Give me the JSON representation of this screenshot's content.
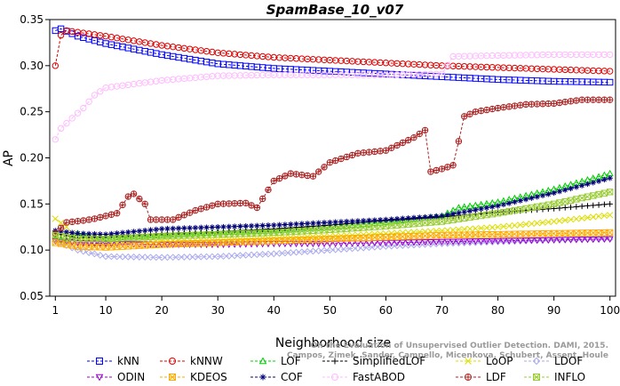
{
  "chart_data": {
    "type": "line",
    "title": "SpamBase_10_v07",
    "xlabel": "Neighborhood size",
    "ylabel": "AP",
    "xlim": [
      0,
      101
    ],
    "ylim": [
      0.05,
      0.35
    ],
    "xticks": [
      1,
      10,
      20,
      30,
      40,
      50,
      60,
      70,
      80,
      90,
      100
    ],
    "yticks": [
      0.05,
      0.1,
      0.15,
      0.2,
      0.25,
      0.3,
      0.35
    ],
    "grid": false,
    "legend_position": "bottom",
    "credit": "Campos, Zimek, Sander, Campello, Micenkova, Schubert, Assent, Houle",
    "credit_top": "On the Evaluation of Unsupervised Outlier Detection. DAMI, 2015.",
    "series": [
      {
        "name": "kNN",
        "color": "#0000ff",
        "marker": "square",
        "anchors": [
          [
            1,
            0.338
          ],
          [
            2,
            0.34
          ],
          [
            5,
            0.332
          ],
          [
            10,
            0.324
          ],
          [
            20,
            0.312
          ],
          [
            30,
            0.302
          ],
          [
            40,
            0.297
          ],
          [
            50,
            0.294
          ],
          [
            60,
            0.291
          ],
          [
            70,
            0.288
          ],
          [
            80,
            0.285
          ],
          [
            90,
            0.283
          ],
          [
            100,
            0.282
          ]
        ]
      },
      {
        "name": "kNNW",
        "color": "#dd0000",
        "marker": "circle",
        "anchors": [
          [
            1,
            0.3
          ],
          [
            2,
            0.333
          ],
          [
            3,
            0.338
          ],
          [
            10,
            0.332
          ],
          [
            20,
            0.322
          ],
          [
            30,
            0.314
          ],
          [
            40,
            0.309
          ],
          [
            50,
            0.306
          ],
          [
            60,
            0.303
          ],
          [
            70,
            0.3
          ],
          [
            80,
            0.298
          ],
          [
            90,
            0.296
          ],
          [
            100,
            0.294
          ]
        ]
      },
      {
        "name": "LOF",
        "color": "#00cc00",
        "marker": "triangle-up",
        "anchors": [
          [
            1,
            0.112
          ],
          [
            3,
            0.11
          ],
          [
            5,
            0.118
          ],
          [
            10,
            0.113
          ],
          [
            20,
            0.116
          ],
          [
            30,
            0.119
          ],
          [
            40,
            0.121
          ],
          [
            50,
            0.125
          ],
          [
            60,
            0.13
          ],
          [
            70,
            0.137
          ],
          [
            73,
            0.146
          ],
          [
            80,
            0.152
          ],
          [
            90,
            0.166
          ],
          [
            100,
            0.183
          ]
        ]
      },
      {
        "name": "SimplifiedLOF",
        "color": "#000000",
        "marker": "plus",
        "anchors": [
          [
            1,
            0.118
          ],
          [
            5,
            0.113
          ],
          [
            10,
            0.115
          ],
          [
            20,
            0.118
          ],
          [
            30,
            0.12
          ],
          [
            40,
            0.123
          ],
          [
            50,
            0.127
          ],
          [
            60,
            0.132
          ],
          [
            70,
            0.136
          ],
          [
            80,
            0.141
          ],
          [
            90,
            0.145
          ],
          [
            100,
            0.15
          ]
        ]
      },
      {
        "name": "LoOP",
        "color": "#dddd00",
        "marker": "x",
        "anchors": [
          [
            1,
            0.134
          ],
          [
            3,
            0.125
          ],
          [
            5,
            0.112
          ],
          [
            10,
            0.108
          ],
          [
            20,
            0.11
          ],
          [
            30,
            0.111
          ],
          [
            40,
            0.113
          ],
          [
            50,
            0.115
          ],
          [
            60,
            0.118
          ],
          [
            70,
            0.121
          ],
          [
            80,
            0.125
          ],
          [
            90,
            0.131
          ],
          [
            100,
            0.138
          ]
        ]
      },
      {
        "name": "LDOF",
        "color": "#aaaaee",
        "marker": "diamond",
        "anchors": [
          [
            1,
            0.11
          ],
          [
            5,
            0.1
          ],
          [
            10,
            0.093
          ],
          [
            20,
            0.092
          ],
          [
            30,
            0.093
          ],
          [
            40,
            0.096
          ],
          [
            50,
            0.1
          ],
          [
            60,
            0.104
          ],
          [
            70,
            0.107
          ],
          [
            80,
            0.109
          ],
          [
            90,
            0.111
          ],
          [
            100,
            0.112
          ]
        ]
      },
      {
        "name": "ODIN",
        "color": "#9900cc",
        "marker": "triangle-down",
        "anchors": [
          [
            1,
            0.11
          ],
          [
            5,
            0.108
          ],
          [
            10,
            0.107
          ],
          [
            20,
            0.106
          ],
          [
            30,
            0.106
          ],
          [
            40,
            0.107
          ],
          [
            50,
            0.107
          ],
          [
            60,
            0.108
          ],
          [
            70,
            0.109
          ],
          [
            80,
            0.11
          ],
          [
            90,
            0.111
          ],
          [
            100,
            0.112
          ]
        ]
      },
      {
        "name": "KDEOS",
        "color": "#ffaa00",
        "marker": "square-x",
        "anchors": [
          [
            1,
            0.108
          ],
          [
            5,
            0.104
          ],
          [
            10,
            0.103
          ],
          [
            20,
            0.106
          ],
          [
            30,
            0.108
          ],
          [
            40,
            0.11
          ],
          [
            50,
            0.112
          ],
          [
            60,
            0.114
          ],
          [
            70,
            0.116
          ],
          [
            80,
            0.117
          ],
          [
            90,
            0.118
          ],
          [
            100,
            0.119
          ]
        ]
      },
      {
        "name": "COF",
        "color": "#000077",
        "marker": "star",
        "anchors": [
          [
            1,
            0.121
          ],
          [
            5,
            0.118
          ],
          [
            10,
            0.117
          ],
          [
            20,
            0.123
          ],
          [
            30,
            0.125
          ],
          [
            40,
            0.127
          ],
          [
            50,
            0.13
          ],
          [
            60,
            0.133
          ],
          [
            70,
            0.137
          ],
          [
            80,
            0.148
          ],
          [
            90,
            0.162
          ],
          [
            100,
            0.178
          ]
        ]
      },
      {
        "name": "FastABOD",
        "color": "#ffbbff",
        "marker": "circle",
        "anchors": [
          [
            1,
            0.22
          ],
          [
            2,
            0.232
          ],
          [
            4,
            0.243
          ],
          [
            6,
            0.254
          ],
          [
            8,
            0.268
          ],
          [
            10,
            0.276
          ],
          [
            15,
            0.28
          ],
          [
            20,
            0.284
          ],
          [
            30,
            0.289
          ],
          [
            40,
            0.29
          ],
          [
            50,
            0.29
          ],
          [
            60,
            0.29
          ],
          [
            70,
            0.291
          ],
          [
            72,
            0.31
          ],
          [
            80,
            0.311
          ],
          [
            90,
            0.312
          ],
          [
            100,
            0.312
          ]
        ]
      },
      {
        "name": "LDF",
        "color": "#aa2222",
        "marker": "circle-plus",
        "anchors": [
          [
            1,
            0.118
          ],
          [
            3,
            0.13
          ],
          [
            6,
            0.132
          ],
          [
            8,
            0.134
          ],
          [
            10,
            0.137
          ],
          [
            12,
            0.14
          ],
          [
            14,
            0.158
          ],
          [
            15,
            0.161
          ],
          [
            17,
            0.15
          ],
          [
            18,
            0.133
          ],
          [
            22,
            0.133
          ],
          [
            26,
            0.143
          ],
          [
            30,
            0.15
          ],
          [
            35,
            0.151
          ],
          [
            37,
            0.146
          ],
          [
            40,
            0.175
          ],
          [
            43,
            0.183
          ],
          [
            47,
            0.18
          ],
          [
            50,
            0.195
          ],
          [
            55,
            0.205
          ],
          [
            60,
            0.208
          ],
          [
            65,
            0.222
          ],
          [
            67,
            0.23
          ],
          [
            68,
            0.185
          ],
          [
            70,
            0.188
          ],
          [
            72,
            0.192
          ],
          [
            73,
            0.218
          ],
          [
            74,
            0.245
          ],
          [
            76,
            0.25
          ],
          [
            80,
            0.254
          ],
          [
            85,
            0.258
          ],
          [
            90,
            0.259
          ],
          [
            95,
            0.263
          ],
          [
            100,
            0.263
          ]
        ]
      },
      {
        "name": "INFLO",
        "color": "#99cc33",
        "marker": "square-x",
        "anchors": [
          [
            1,
            0.116
          ],
          [
            5,
            0.112
          ],
          [
            10,
            0.112
          ],
          [
            20,
            0.115
          ],
          [
            30,
            0.117
          ],
          [
            40,
            0.119
          ],
          [
            50,
            0.122
          ],
          [
            60,
            0.126
          ],
          [
            70,
            0.131
          ],
          [
            80,
            0.14
          ],
          [
            90,
            0.15
          ],
          [
            100,
            0.163
          ]
        ]
      }
    ]
  }
}
